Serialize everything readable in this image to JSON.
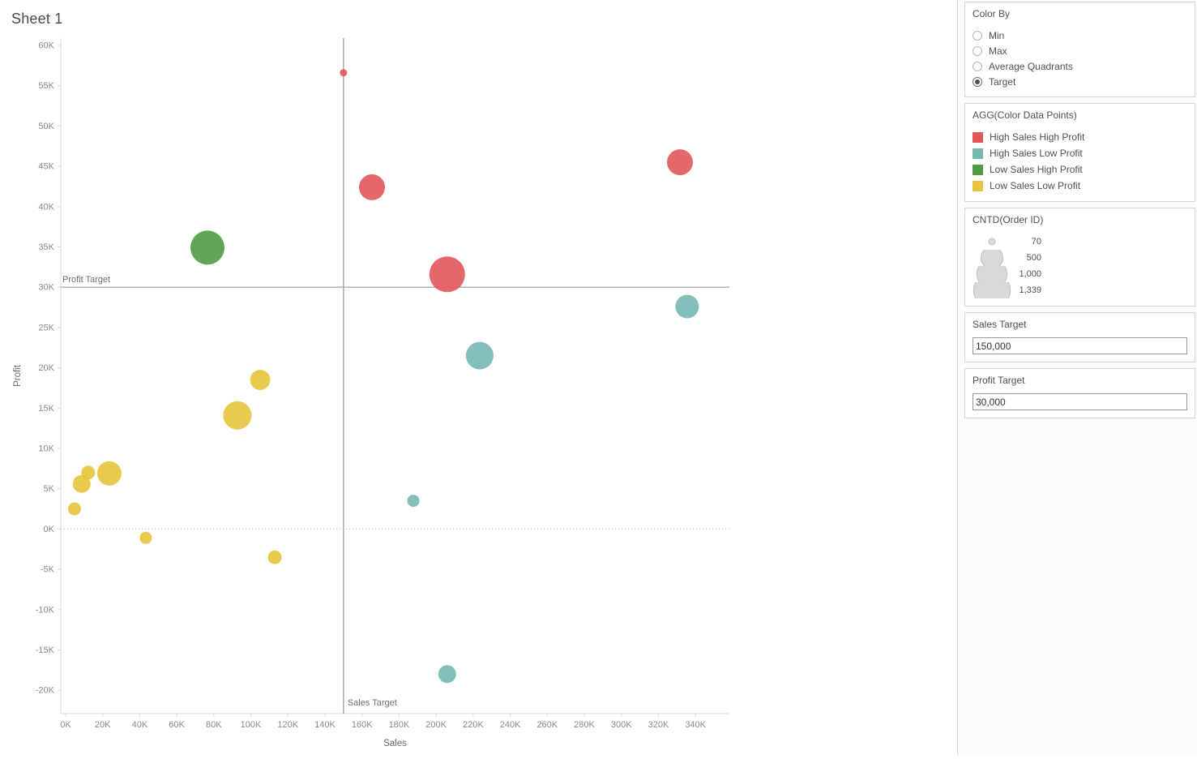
{
  "title": "Sheet 1",
  "sidebar": {
    "color_by": {
      "title": "Color By",
      "options": [
        {
          "label": "Min",
          "selected": false
        },
        {
          "label": "Max",
          "selected": false
        },
        {
          "label": "Average Quadrants",
          "selected": false
        },
        {
          "label": "Target",
          "selected": true
        }
      ]
    },
    "color_legend": {
      "title": "AGG(Color Data Points)",
      "items": [
        {
          "label": "High Sales High Profit",
          "color": "#e15759"
        },
        {
          "label": "High Sales Low Profit",
          "color": "#76b7b2"
        },
        {
          "label": "Low Sales High Profit",
          "color": "#4f9c44"
        },
        {
          "label": "Low Sales Low Profit",
          "color": "#e8c33c"
        }
      ]
    },
    "size_legend": {
      "title": "CNTD(Order ID)",
      "items": [
        {
          "label": "70",
          "d": 9
        },
        {
          "label": "500",
          "d": 28
        },
        {
          "label": "1,000",
          "d": 38
        },
        {
          "label": "1,339",
          "d": 46
        }
      ]
    },
    "params": [
      {
        "title": "Sales Target",
        "value": "150,000"
      },
      {
        "title": "Profit Target",
        "value": "30,000"
      }
    ]
  },
  "chart_data": {
    "type": "scatter",
    "xlabel": "Sales",
    "ylabel": "Profit",
    "grid": false,
    "xlim_k": [
      -2.6,
      358.3
    ],
    "ylim_k": [
      -22.9,
      60.9
    ],
    "x_ticks": [
      {
        "v": 0,
        "label": "0K"
      },
      {
        "v": 20,
        "label": "20K"
      },
      {
        "v": 40,
        "label": "40K"
      },
      {
        "v": 60,
        "label": "60K"
      },
      {
        "v": 80,
        "label": "80K"
      },
      {
        "v": 100,
        "label": "100K"
      },
      {
        "v": 120,
        "label": "120K"
      },
      {
        "v": 140,
        "label": "140K"
      },
      {
        "v": 160,
        "label": "160K"
      },
      {
        "v": 180,
        "label": "180K"
      },
      {
        "v": 200,
        "label": "200K"
      },
      {
        "v": 220,
        "label": "220K"
      },
      {
        "v": 240,
        "label": "240K"
      },
      {
        "v": 260,
        "label": "260K"
      },
      {
        "v": 280,
        "label": "280K"
      },
      {
        "v": 300,
        "label": "300K"
      },
      {
        "v": 320,
        "label": "320K"
      },
      {
        "v": 340,
        "label": "340K"
      }
    ],
    "y_ticks": [
      {
        "v": 60,
        "label": "60K"
      },
      {
        "v": 55,
        "label": "55K"
      },
      {
        "v": 50,
        "label": "50K"
      },
      {
        "v": 45,
        "label": "45K"
      },
      {
        "v": 40,
        "label": "40K"
      },
      {
        "v": 35,
        "label": "35K"
      },
      {
        "v": 30,
        "label": "30K"
      },
      {
        "v": 25,
        "label": "25K"
      },
      {
        "v": 20,
        "label": "20K"
      },
      {
        "v": 15,
        "label": "15K"
      },
      {
        "v": 10,
        "label": "10K"
      },
      {
        "v": 5,
        "label": "5K"
      },
      {
        "v": 0,
        "label": "0K"
      },
      {
        "v": -5,
        "label": "-5K"
      },
      {
        "v": -10,
        "label": "-10K"
      },
      {
        "v": -15,
        "label": "-15K"
      },
      {
        "v": -20,
        "label": "-20K"
      }
    ],
    "zero_line_k": 0,
    "ref_lines": {
      "sales_target": {
        "label": "Sales Target",
        "value_k": 150
      },
      "profit_target": {
        "label": "Profit Target",
        "value_k": 30
      }
    },
    "series": [
      {
        "name": "High Sales High Profit",
        "key": "high-sales-high-profit",
        "color": "#e15759",
        "points": [
          {
            "sales_k": 150.0,
            "profit_k": 56.6,
            "r": 4.5
          },
          {
            "sales_k": 165.4,
            "profit_k": 42.4,
            "r": 16
          },
          {
            "sales_k": 206.0,
            "profit_k": 31.6,
            "r": 22
          },
          {
            "sales_k": 331.6,
            "profit_k": 45.5,
            "r": 16
          }
        ]
      },
      {
        "name": "High Sales Low Profit",
        "key": "high-sales-low-profit",
        "color": "#76b7b2",
        "points": [
          {
            "sales_k": 335.5,
            "profit_k": 27.6,
            "r": 14.5
          },
          {
            "sales_k": 223.5,
            "profit_k": 21.5,
            "r": 17
          },
          {
            "sales_k": 187.7,
            "profit_k": 3.5,
            "r": 7.5
          },
          {
            "sales_k": 206.0,
            "profit_k": -18.0,
            "r": 11
          }
        ]
      },
      {
        "name": "Low Sales High Profit",
        "key": "low-sales-high-profit",
        "color": "#4f9c44",
        "points": [
          {
            "sales_k": 76.6,
            "profit_k": 34.9,
            "r": 21
          }
        ]
      },
      {
        "name": "Low Sales Low Profit",
        "key": "low-sales-low-profit",
        "color": "#e8c33c",
        "points": [
          {
            "sales_k": 105.0,
            "profit_k": 18.5,
            "r": 12.5
          },
          {
            "sales_k": 92.7,
            "profit_k": 14.1,
            "r": 17.5
          },
          {
            "sales_k": 23.6,
            "profit_k": 6.9,
            "r": 15
          },
          {
            "sales_k": 12.2,
            "profit_k": 7.0,
            "r": 8.5
          },
          {
            "sales_k": 8.7,
            "profit_k": 5.6,
            "r": 11
          },
          {
            "sales_k": 4.8,
            "profit_k": 2.5,
            "r": 8
          },
          {
            "sales_k": 43.3,
            "profit_k": -1.1,
            "r": 7.5
          },
          {
            "sales_k": 112.9,
            "profit_k": -3.5,
            "r": 8.5
          }
        ]
      }
    ]
  }
}
